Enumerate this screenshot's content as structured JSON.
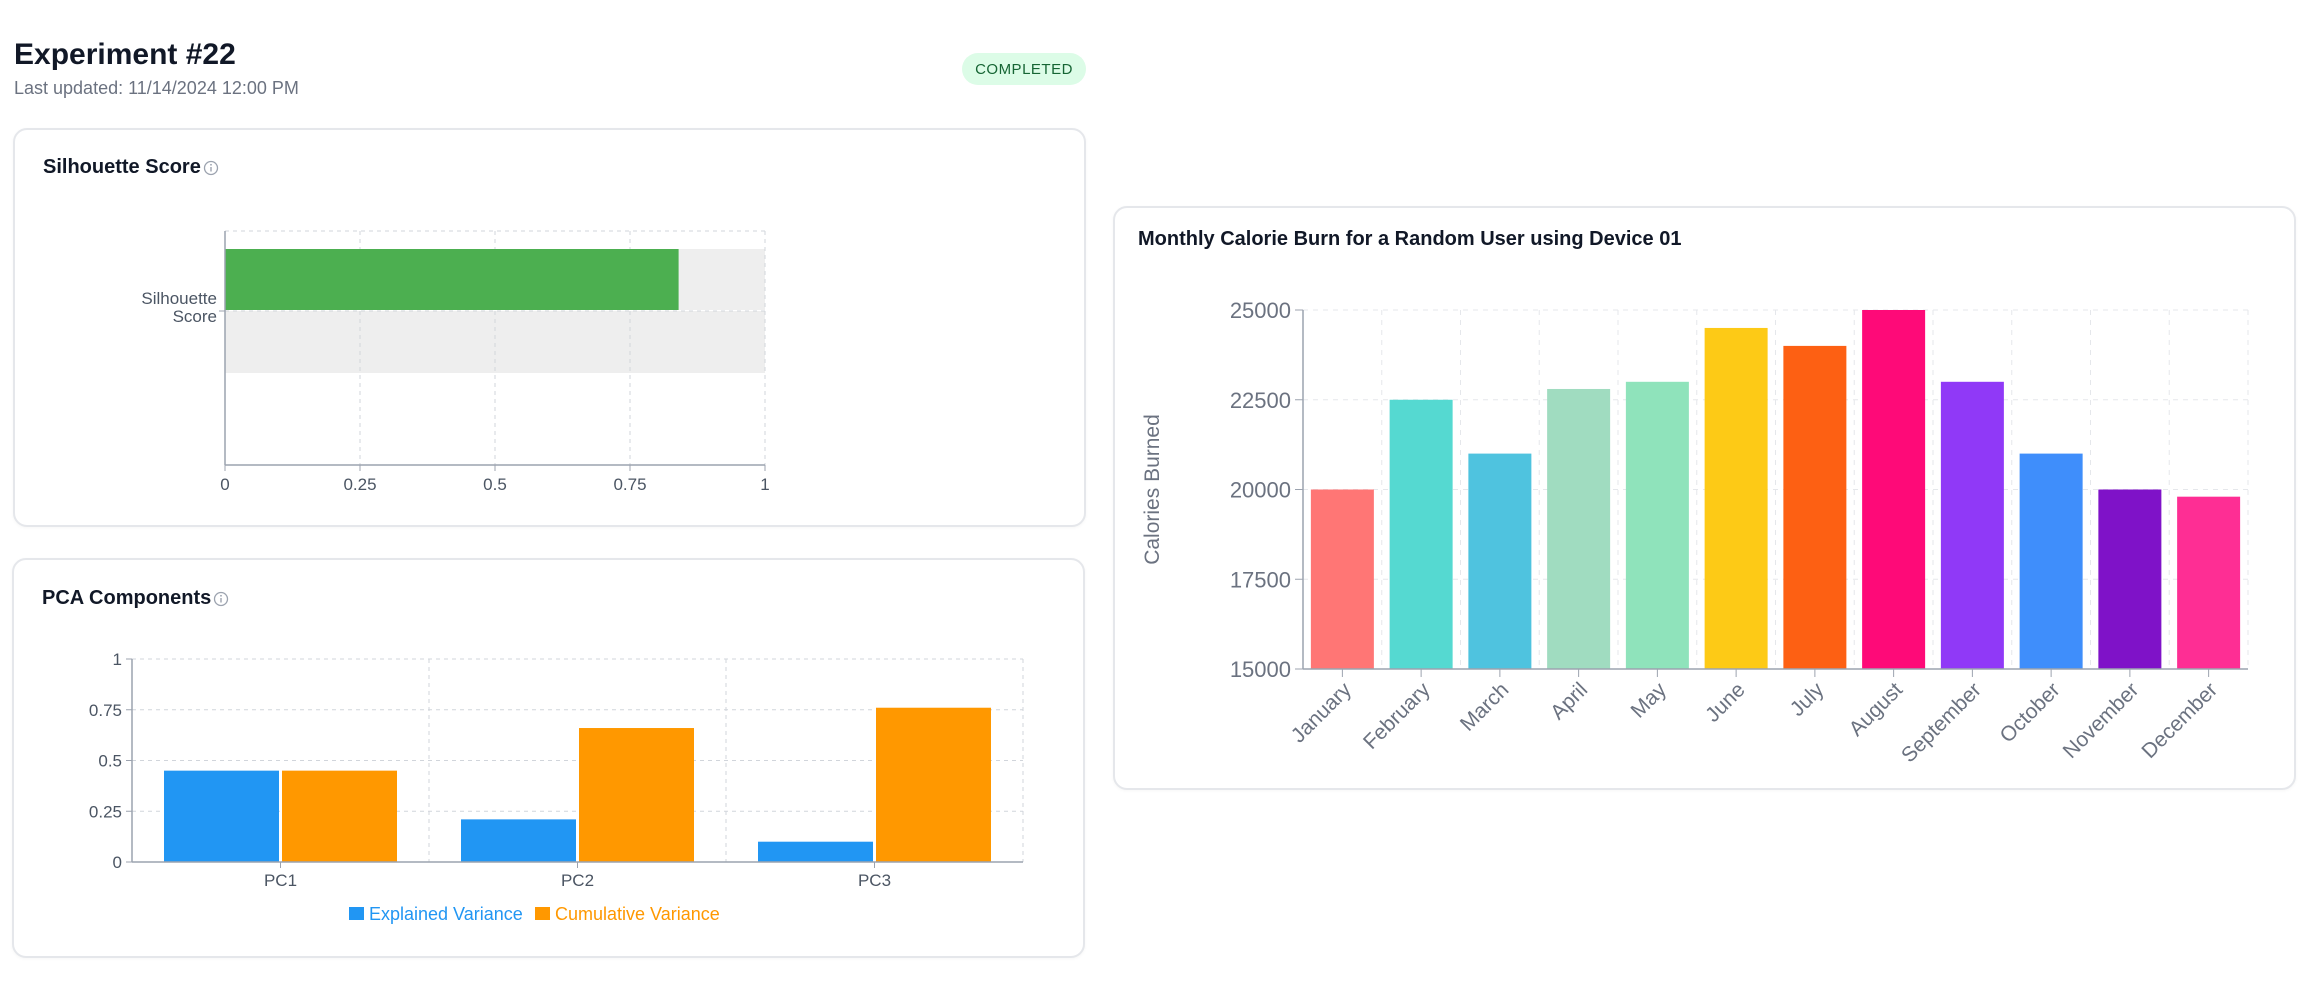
{
  "header": {
    "title": "Experiment #22",
    "last_updated": "Last updated: 11/14/2024 12:00 PM",
    "status": "COMPLETED"
  },
  "silhouette_card": {
    "title": "Silhouette Score",
    "info_icon": "info-icon",
    "chart_data": {
      "type": "bar",
      "orientation": "horizontal",
      "categories": [
        "Silhouette Score"
      ],
      "values": [
        0.84
      ],
      "xlim": [
        0,
        1
      ],
      "xticks": [
        "0",
        "0.25",
        "0.5",
        "0.75",
        "1"
      ],
      "category_label_lines": [
        "Silhouette",
        "Score"
      ],
      "bar_color": "#4caf50",
      "background_color": "#eeeeee",
      "grid": true
    }
  },
  "pca_card": {
    "title": "PCA Components",
    "info_icon": "info-icon",
    "chart_data": {
      "type": "bar",
      "categories": [
        "PC1",
        "PC2",
        "PC3"
      ],
      "series": [
        {
          "name": "Explained Variance",
          "values": [
            0.45,
            0.21,
            0.1
          ],
          "color": "#2196f3"
        },
        {
          "name": "Cumulative Variance",
          "values": [
            0.45,
            0.66,
            0.76
          ],
          "color": "#ff9800"
        }
      ],
      "ylim": [
        0,
        1
      ],
      "yticks": [
        "0",
        "0.25",
        "0.5",
        "0.75",
        "1"
      ],
      "legend": "bottom",
      "grid": true
    }
  },
  "calorie_card": {
    "title": "Monthly Calorie Burn for a Random User using Device 01",
    "chart_data": {
      "type": "bar",
      "categories": [
        "January",
        "February",
        "March",
        "April",
        "May",
        "June",
        "July",
        "August",
        "September",
        "October",
        "November",
        "December"
      ],
      "values": [
        20000,
        22500,
        21000,
        22800,
        23000,
        24500,
        24000,
        25000,
        23000,
        21000,
        20000,
        19800
      ],
      "colors": [
        "#ff7675",
        "#55d9d1",
        "#4fc3df",
        "#a0dcc0",
        "#8fe3bb",
        "#fdca16",
        "#fd6013",
        "#fe0a78",
        "#9039f7",
        "#3f8efb",
        "#7f12c8",
        "#fe2e94"
      ],
      "ylabel": "Calories Burned",
      "ylim": [
        15000,
        25000
      ],
      "yticks": [
        "15000",
        "17500",
        "20000",
        "22500",
        "25000"
      ],
      "grid": true
    }
  }
}
